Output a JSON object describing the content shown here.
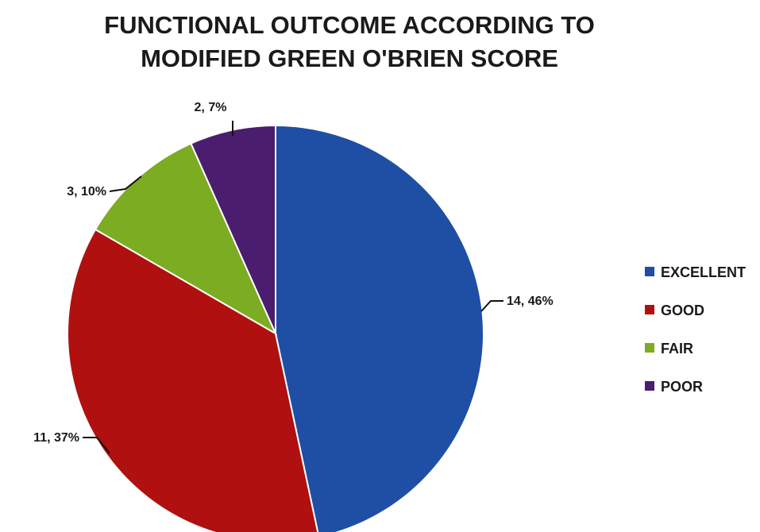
{
  "chart_data": {
    "type": "pie",
    "title_lines": [
      "FUNCTIONAL OUTCOME ACCORDING TO",
      "MODIFIED GREEN O'BRIEN SCORE"
    ],
    "slices": [
      {
        "category": "EXCELLENT",
        "count": 14,
        "percent": 46,
        "label": "14, 46%",
        "color": "#1f4ea5"
      },
      {
        "category": "GOOD",
        "count": 11,
        "percent": 37,
        "label": "11, 37%",
        "color": "#b01010"
      },
      {
        "category": "FAIR",
        "count": 3,
        "percent": 10,
        "label": "3, 10%",
        "color": "#7bac21"
      },
      {
        "category": "POOR",
        "count": 2,
        "percent": 7,
        "label": "2, 7%",
        "color": "#4b1d6e"
      }
    ],
    "start_angle": "12 o'clock",
    "direction": "clockwise",
    "legend": {
      "position": "right",
      "items": [
        "EXCELLENT",
        "GOOD",
        "FAIR",
        "POOR"
      ]
    }
  }
}
